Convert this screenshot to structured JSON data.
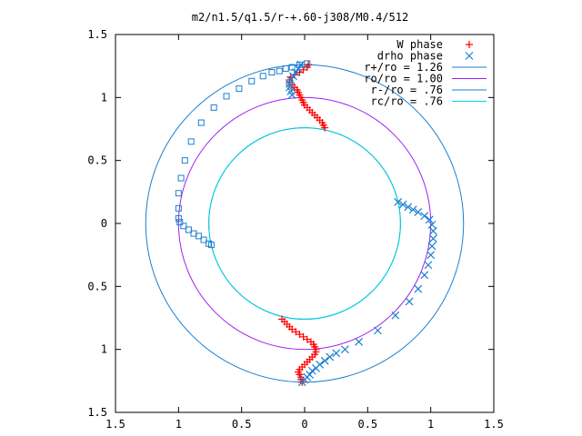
{
  "chart_data": {
    "type": "scatter",
    "title": "m2/n1.5/q1.5/r-+.60-j308/M0.4/512",
    "xlim": [
      -1.5,
      1.5
    ],
    "ylim": [
      -1.5,
      1.5
    ],
    "x_ticks": [
      -1.5,
      -1,
      -0.5,
      0,
      0.5,
      1,
      1.5
    ],
    "x_tick_labels": [
      "1.5",
      "1",
      "0.5",
      "0",
      "0.5",
      "1",
      "1.5"
    ],
    "y_ticks": [
      1.5,
      1,
      0.5,
      0,
      -0.5,
      -1,
      -1.5
    ],
    "y_tick_labels": [
      "1.5",
      "1",
      "0.5",
      "0",
      "0.5",
      "1",
      "1.5"
    ],
    "legend_position": "top-right",
    "grid": false,
    "circles": [
      {
        "name": "r+/ro = 1.26",
        "radius": 1.26,
        "color": "#1a7fd0"
      },
      {
        "name": "ro/ro = 1.00",
        "radius": 1.0,
        "color": "#a020f0"
      },
      {
        "name": "r-/ro = .76",
        "radius": 0.76,
        "color": "#1a7fd0"
      },
      {
        "name": "rc/ro = .76",
        "radius": 0.76,
        "color": "#00d0e0"
      }
    ],
    "series": [
      {
        "name": "W phase",
        "marker": "plus",
        "color": "#ff0000",
        "points": [
          [
            0.03,
            1.26
          ],
          [
            0.02,
            1.24
          ],
          [
            -0.01,
            1.22
          ],
          [
            -0.04,
            1.2
          ],
          [
            -0.08,
            1.18
          ],
          [
            -0.11,
            1.16
          ],
          [
            -0.12,
            1.14
          ],
          [
            -0.12,
            1.12
          ],
          [
            -0.1,
            1.1
          ],
          [
            -0.08,
            1.08
          ],
          [
            -0.06,
            1.06
          ],
          [
            -0.05,
            1.04
          ],
          [
            -0.04,
            1.02
          ],
          [
            -0.03,
            1.0
          ],
          [
            -0.02,
            0.98
          ],
          [
            -0.01,
            0.96
          ],
          [
            0.0,
            0.94
          ],
          [
            0.02,
            0.92
          ],
          [
            0.04,
            0.9
          ],
          [
            0.06,
            0.88
          ],
          [
            0.08,
            0.86
          ],
          [
            0.1,
            0.84
          ],
          [
            0.12,
            0.82
          ],
          [
            0.14,
            0.8
          ],
          [
            0.15,
            0.78
          ],
          [
            0.16,
            0.76
          ],
          [
            -0.18,
            -0.76
          ],
          [
            -0.16,
            -0.78
          ],
          [
            -0.14,
            -0.8
          ],
          [
            -0.12,
            -0.82
          ],
          [
            -0.1,
            -0.84
          ],
          [
            -0.07,
            -0.86
          ],
          [
            -0.04,
            -0.88
          ],
          [
            -0.01,
            -0.9
          ],
          [
            0.02,
            -0.92
          ],
          [
            0.05,
            -0.94
          ],
          [
            0.07,
            -0.96
          ],
          [
            0.08,
            -0.98
          ],
          [
            0.09,
            -1.0
          ],
          [
            0.09,
            -1.02
          ],
          [
            0.08,
            -1.04
          ],
          [
            0.06,
            -1.06
          ],
          [
            0.04,
            -1.08
          ],
          [
            0.02,
            -1.1
          ],
          [
            0.0,
            -1.12
          ],
          [
            -0.02,
            -1.14
          ],
          [
            -0.04,
            -1.16
          ],
          [
            -0.05,
            -1.18
          ],
          [
            -0.04,
            -1.2
          ],
          [
            -0.03,
            -1.22
          ],
          [
            -0.03,
            -1.24
          ],
          [
            -0.02,
            -1.26
          ]
        ]
      },
      {
        "name": "drho phase",
        "marker": "cross",
        "color": "#1a7fd0",
        "points": [
          [
            -0.03,
            1.26
          ],
          [
            -0.05,
            1.23
          ],
          [
            -0.07,
            1.2
          ],
          [
            -0.09,
            1.17
          ],
          [
            -0.11,
            1.14
          ],
          [
            -0.12,
            1.11
          ],
          [
            -0.12,
            1.08
          ],
          [
            -0.11,
            1.05
          ],
          [
            -0.1,
            1.02
          ],
          [
            0.74,
            0.17
          ],
          [
            0.78,
            0.15
          ],
          [
            0.82,
            0.13
          ],
          [
            0.86,
            0.11
          ],
          [
            0.9,
            0.09
          ],
          [
            0.95,
            0.06
          ],
          [
            0.99,
            0.03
          ],
          [
            1.01,
            -0.01
          ],
          [
            1.02,
            -0.06
          ],
          [
            1.02,
            -0.12
          ],
          [
            1.01,
            -0.18
          ],
          [
            1.0,
            -0.25
          ],
          [
            0.98,
            -0.33
          ],
          [
            0.95,
            -0.41
          ],
          [
            0.9,
            -0.52
          ],
          [
            0.83,
            -0.62
          ],
          [
            0.72,
            -0.73
          ],
          [
            0.58,
            -0.85
          ],
          [
            0.43,
            -0.94
          ],
          [
            0.32,
            -1.0
          ],
          [
            0.25,
            -1.03
          ],
          [
            0.2,
            -1.06
          ],
          [
            0.16,
            -1.09
          ],
          [
            0.12,
            -1.12
          ],
          [
            0.09,
            -1.15
          ],
          [
            0.06,
            -1.17
          ],
          [
            0.04,
            -1.2
          ],
          [
            0.02,
            -1.22
          ],
          [
            0.0,
            -1.24
          ],
          [
            -0.02,
            -1.26
          ]
        ]
      },
      {
        "name": "",
        "marker": "square",
        "color": "#1a7fd0",
        "points": [
          [
            0.02,
            1.27
          ],
          [
            -0.04,
            1.26
          ],
          [
            -0.1,
            1.24
          ],
          [
            -0.15,
            1.23
          ],
          [
            -0.2,
            1.21
          ],
          [
            -0.26,
            1.2
          ],
          [
            -0.33,
            1.17
          ],
          [
            -0.42,
            1.13
          ],
          [
            -0.52,
            1.07
          ],
          [
            -0.62,
            1.01
          ],
          [
            -0.72,
            0.92
          ],
          [
            -0.82,
            0.8
          ],
          [
            -0.9,
            0.65
          ],
          [
            -0.95,
            0.5
          ],
          [
            -0.98,
            0.36
          ],
          [
            -1.0,
            0.24
          ],
          [
            -1.0,
            0.12
          ],
          [
            -1.0,
            0.04
          ],
          [
            -0.99,
            0.01
          ],
          [
            -0.96,
            -0.02
          ],
          [
            -0.92,
            -0.05
          ],
          [
            -0.88,
            -0.08
          ],
          [
            -0.84,
            -0.1
          ],
          [
            -0.8,
            -0.13
          ],
          [
            -0.76,
            -0.16
          ],
          [
            -0.74,
            -0.17
          ]
        ]
      }
    ]
  }
}
